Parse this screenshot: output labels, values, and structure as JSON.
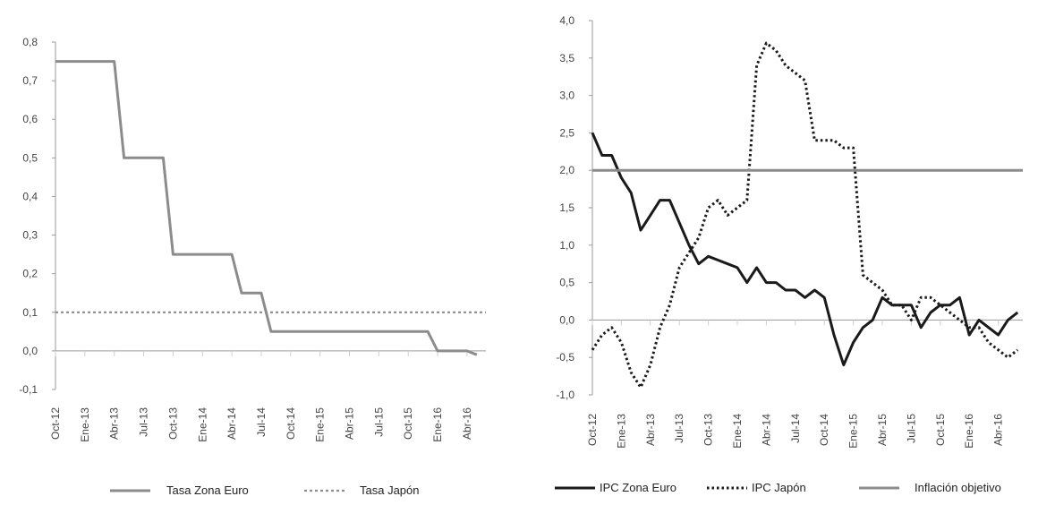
{
  "chart_data": [
    {
      "type": "line",
      "xlabel": "",
      "ylabel": "",
      "ylim": [
        -0.1,
        0.8
      ],
      "ytick_labels": [
        "-0,1",
        "0,0",
        "0,1",
        "0,2",
        "0,3",
        "0,4",
        "0,5",
        "0,6",
        "0,7",
        "0,8"
      ],
      "x_tick_labels": [
        "Oct-12",
        "Ene-13",
        "Abr-13",
        "Jul-13",
        "Oct-13",
        "Ene-14",
        "Abr-14",
        "Jul-14",
        "Oct-14",
        "Ene-15",
        "Abr-15",
        "Jul-15",
        "Oct-15",
        "Ene-16",
        "Abr-16"
      ],
      "x_span_months": 46,
      "legend_position": "bottom",
      "series": [
        {
          "name": "Tasa Zona Euro",
          "color": "#8c8c8c",
          "style": "solid",
          "x": [
            0,
            6,
            7,
            11,
            12,
            18,
            19,
            21,
            22,
            38,
            39,
            41,
            42,
            43
          ],
          "y": [
            0.75,
            0.75,
            0.5,
            0.5,
            0.25,
            0.25,
            0.15,
            0.15,
            0.05,
            0.05,
            0.0,
            0.0,
            0.0,
            -0.01
          ]
        },
        {
          "name": "Tasa Japón",
          "color": "#8c8c8c",
          "style": "dotted",
          "x": [
            0,
            46
          ],
          "y": [
            0.1,
            0.1
          ]
        }
      ]
    },
    {
      "type": "line",
      "xlabel": "",
      "ylabel": "",
      "ylim": [
        -1.0,
        4.0
      ],
      "ytick_labels": [
        "-1,0",
        "-0,5",
        "0,0",
        "0,5",
        "1,0",
        "1,5",
        "2,0",
        "2,5",
        "3,0",
        "3,5",
        "4,0"
      ],
      "x_tick_labels": [
        "Oct-12",
        "Ene-13",
        "Abr-13",
        "Jul-13",
        "Oct-13",
        "Ene-14",
        "Abr-14",
        "Jul-14",
        "Oct-14",
        "Ene-15",
        "Abr-15",
        "Jul-15",
        "Oct-15",
        "Ene-16",
        "Abr-16"
      ],
      "x_span_months": 44,
      "legend_position": "bottom",
      "series": [
        {
          "name": "IPC Zona Euro",
          "color": "#1a1a1a",
          "style": "solid",
          "x": [
            0,
            1,
            2,
            3,
            4,
            5,
            6,
            7,
            8,
            9,
            10,
            11,
            12,
            13,
            14,
            15,
            16,
            17,
            18,
            19,
            20,
            21,
            22,
            23,
            24,
            25,
            26,
            27,
            28,
            29,
            30,
            31,
            32,
            33,
            34,
            35,
            36,
            37,
            38,
            39,
            40,
            41,
            42,
            43,
            44
          ],
          "y": [
            2.5,
            2.2,
            2.2,
            1.9,
            1.7,
            1.2,
            1.4,
            1.6,
            1.6,
            1.3,
            1.0,
            0.75,
            0.85,
            0.8,
            0.75,
            0.7,
            0.5,
            0.7,
            0.5,
            0.5,
            0.4,
            0.4,
            0.3,
            0.4,
            0.3,
            -0.2,
            -0.6,
            -0.3,
            -0.1,
            0.0,
            0.3,
            0.2,
            0.2,
            0.2,
            -0.1,
            0.1,
            0.2,
            0.2,
            0.3,
            -0.2,
            0.0,
            -0.1,
            -0.2,
            0.0,
            0.1
          ]
        },
        {
          "name": "IPC Japón",
          "color": "#1a1a1a",
          "style": "dotted",
          "x": [
            0,
            1,
            2,
            3,
            4,
            5,
            6,
            7,
            8,
            9,
            10,
            11,
            12,
            13,
            14,
            15,
            16,
            17,
            18,
            19,
            20,
            21,
            22,
            23,
            24,
            25,
            26,
            27,
            28,
            29,
            30,
            31,
            32,
            33,
            34,
            35,
            36,
            37,
            38,
            39,
            40,
            41,
            42,
            43,
            44
          ],
          "y": [
            -0.4,
            -0.2,
            -0.1,
            -0.3,
            -0.7,
            -0.9,
            -0.6,
            -0.1,
            0.2,
            0.7,
            0.9,
            1.1,
            1.5,
            1.6,
            1.4,
            1.5,
            1.6,
            3.4,
            3.7,
            3.6,
            3.4,
            3.3,
            3.2,
            2.4,
            2.4,
            2.4,
            2.3,
            2.3,
            0.6,
            0.5,
            0.4,
            0.2,
            0.2,
            0.0,
            0.3,
            0.3,
            0.2,
            0.1,
            0.0,
            -0.1,
            -0.1,
            -0.3,
            -0.4,
            -0.5,
            -0.4
          ]
        },
        {
          "name": "Inflación objetivo",
          "color": "#8c8c8c",
          "style": "solid",
          "x": [
            0,
            46
          ],
          "y": [
            2.0,
            2.0
          ]
        }
      ]
    }
  ]
}
